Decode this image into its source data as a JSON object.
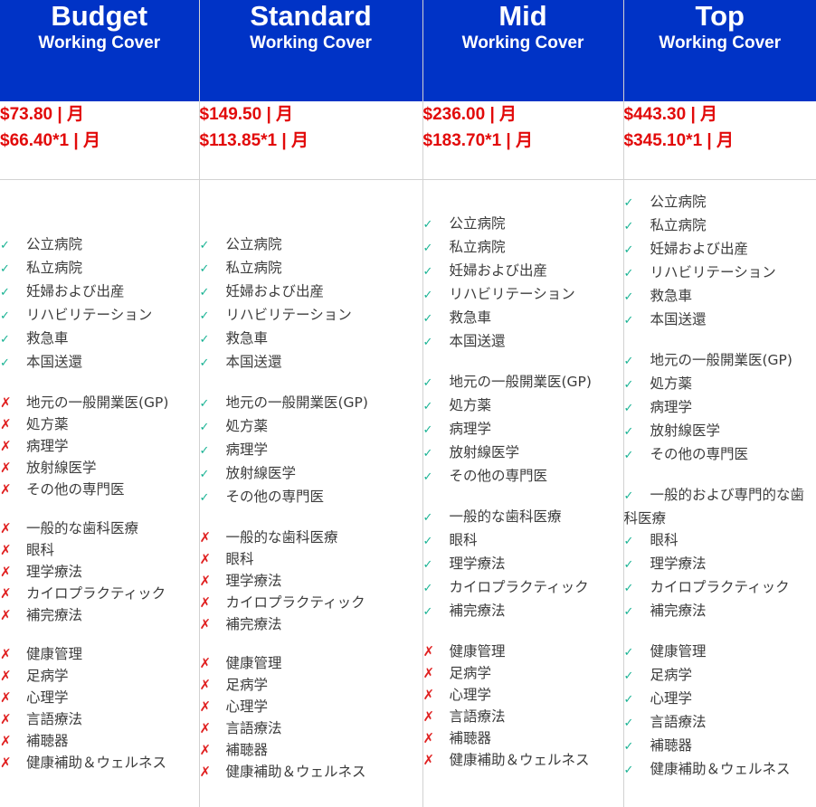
{
  "plans": [
    {
      "name": "Budget",
      "subtitle": "Working Cover",
      "prices": [
        "$73.80 | 月",
        "$66.40*1 | 月"
      ],
      "groups": [
        [
          {
            "label": "公立病院",
            "included": true
          },
          {
            "label": "私立病院",
            "included": true
          },
          {
            "label": "妊婦および出産",
            "included": true
          },
          {
            "label": "リハビリテーション",
            "included": true
          },
          {
            "label": "救急車",
            "included": true
          },
          {
            "label": "本国送還",
            "included": true
          }
        ],
        [
          {
            "label": "地元の一般開業医(GP)",
            "included": false
          },
          {
            "label": "処方薬",
            "included": false
          },
          {
            "label": "病理学",
            "included": false
          },
          {
            "label": "放射線医学",
            "included": false
          },
          {
            "label": "その他の専門医",
            "included": false
          }
        ],
        [
          {
            "label": "一般的な歯科医療",
            "included": false
          },
          {
            "label": "眼科",
            "included": false
          },
          {
            "label": "理学療法",
            "included": false
          },
          {
            "label": "カイロプラクティック",
            "included": false
          },
          {
            "label": "補完療法",
            "included": false
          }
        ],
        [
          {
            "label": "健康管理",
            "included": false
          },
          {
            "label": "足病学",
            "included": false
          },
          {
            "label": "心理学",
            "included": false
          },
          {
            "label": "言語療法",
            "included": false
          },
          {
            "label": "補聴器",
            "included": false
          },
          {
            "label": "健康補助＆ウェルネス",
            "included": false
          }
        ]
      ]
    },
    {
      "name": "Standard",
      "subtitle": "Working Cover",
      "prices": [
        "$149.50 | 月",
        "$113.85*1 | 月"
      ],
      "groups": [
        [
          {
            "label": "公立病院",
            "included": true
          },
          {
            "label": "私立病院",
            "included": true
          },
          {
            "label": "妊婦および出産",
            "included": true
          },
          {
            "label": "リハビリテーション",
            "included": true
          },
          {
            "label": "救急車",
            "included": true
          },
          {
            "label": "本国送還",
            "included": true
          }
        ],
        [
          {
            "label": "地元の一般開業医(GP)",
            "included": true
          },
          {
            "label": "処方薬",
            "included": true
          },
          {
            "label": "病理学",
            "included": true
          },
          {
            "label": "放射線医学",
            "included": true
          },
          {
            "label": "その他の専門医",
            "included": true
          }
        ],
        [
          {
            "label": "一般的な歯科医療",
            "included": false
          },
          {
            "label": "眼科",
            "included": false
          },
          {
            "label": "理学療法",
            "included": false
          },
          {
            "label": "カイロプラクティック",
            "included": false
          },
          {
            "label": "補完療法",
            "included": false
          }
        ],
        [
          {
            "label": "健康管理",
            "included": false
          },
          {
            "label": "足病学",
            "included": false
          },
          {
            "label": "心理学",
            "included": false
          },
          {
            "label": "言語療法",
            "included": false
          },
          {
            "label": "補聴器",
            "included": false
          },
          {
            "label": "健康補助＆ウェルネス",
            "included": false
          }
        ]
      ]
    },
    {
      "name": "Mid",
      "subtitle": "Working Cover",
      "prices": [
        "$236.00 | 月",
        "$183.70*1 | 月"
      ],
      "groups": [
        [
          {
            "label": "公立病院",
            "included": true
          },
          {
            "label": "私立病院",
            "included": true
          },
          {
            "label": "妊婦および出産",
            "included": true
          },
          {
            "label": "リハビリテーション",
            "included": true
          },
          {
            "label": "救急車",
            "included": true
          },
          {
            "label": "本国送還",
            "included": true
          }
        ],
        [
          {
            "label": "地元の一般開業医(GP)",
            "included": true
          },
          {
            "label": "処方薬",
            "included": true
          },
          {
            "label": "病理学",
            "included": true
          },
          {
            "label": "放射線医学",
            "included": true
          },
          {
            "label": "その他の専門医",
            "included": true
          }
        ],
        [
          {
            "label": "一般的な歯科医療",
            "included": true
          },
          {
            "label": "眼科",
            "included": true
          },
          {
            "label": "理学療法",
            "included": true
          },
          {
            "label": "カイロプラクティック",
            "included": true
          },
          {
            "label": "補完療法",
            "included": true
          }
        ],
        [
          {
            "label": "健康管理",
            "included": false
          },
          {
            "label": "足病学",
            "included": false
          },
          {
            "label": "心理学",
            "included": false
          },
          {
            "label": "言語療法",
            "included": false
          },
          {
            "label": "補聴器",
            "included": false
          },
          {
            "label": "健康補助＆ウェルネス",
            "included": false
          }
        ]
      ]
    },
    {
      "name": "Top",
      "subtitle": "Working Cover",
      "prices": [
        "$443.30 | 月",
        "$345.10*1 | 月"
      ],
      "groups": [
        [
          {
            "label": "公立病院",
            "included": true
          },
          {
            "label": "私立病院",
            "included": true
          },
          {
            "label": "妊婦および出産",
            "included": true
          },
          {
            "label": "リハビリテーション",
            "included": true
          },
          {
            "label": "救急車",
            "included": true
          },
          {
            "label": "本国送還",
            "included": true
          }
        ],
        [
          {
            "label": "地元の一般開業医(GP)",
            "included": true
          },
          {
            "label": "処方薬",
            "included": true
          },
          {
            "label": "病理学",
            "included": true
          },
          {
            "label": "放射線医学",
            "included": true
          },
          {
            "label": "その他の専門医",
            "included": true
          }
        ],
        [
          {
            "label": "一般的および専門的な歯科医療",
            "included": true
          },
          {
            "label": "眼科",
            "included": true
          },
          {
            "label": "理学療法",
            "included": true
          },
          {
            "label": "カイロプラクティック",
            "included": true
          },
          {
            "label": "補完療法",
            "included": true
          }
        ],
        [
          {
            "label": "健康管理",
            "included": true
          },
          {
            "label": "足病学",
            "included": true
          },
          {
            "label": "心理学",
            "included": true
          },
          {
            "label": "言語療法",
            "included": true
          },
          {
            "label": "補聴器",
            "included": true
          },
          {
            "label": "健康補助＆ウェルネス",
            "included": true
          }
        ]
      ]
    }
  ],
  "marks": {
    "included": "✓",
    "excluded": "✗"
  },
  "colors": {
    "header_bg": "#0033c6",
    "header_text": "#ffffff",
    "price_text": "#e20a0a",
    "check": "#1ab394",
    "cross": "#e02020",
    "divider": "#d2d2d2"
  }
}
